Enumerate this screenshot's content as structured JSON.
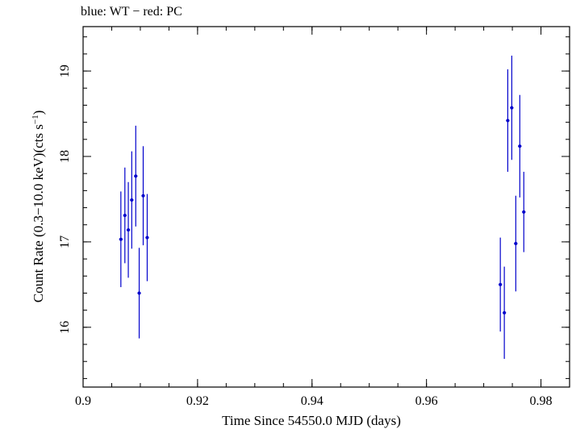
{
  "header": {
    "caption": "blue: WT − red: PC"
  },
  "chart_data": {
    "type": "scatter",
    "title": "blue: WT − red: PC",
    "xlabel": "Time Since 54550.0 MJD (days)",
    "ylabel_main": "Count Rate (0.3−10.0 keV)(cts s",
    "ylabel_exp": "−1",
    "ylabel_tail": ")",
    "xlim": [
      0.9,
      0.985
    ],
    "ylim": [
      15.3,
      19.52
    ],
    "xticks": [
      0.9,
      0.92,
      0.94,
      0.96,
      0.98
    ],
    "xtick_labels": [
      "0.9",
      "0.92",
      "0.94",
      "0.96",
      "0.98"
    ],
    "yticks": [
      16,
      17,
      18,
      19
    ],
    "ytick_labels": [
      "16",
      "17",
      "18",
      "19"
    ],
    "grid": false,
    "series": [
      {
        "name": "WT",
        "color": "#0000cc",
        "points": [
          {
            "x": 0.9066,
            "xerr": 0.0003,
            "y": 17.03,
            "yerr": 0.56
          },
          {
            "x": 0.9073,
            "xerr": 0.0003,
            "y": 17.31,
            "yerr": 0.56
          },
          {
            "x": 0.9079,
            "xerr": 0.0003,
            "y": 17.14,
            "yerr": 0.56
          },
          {
            "x": 0.9085,
            "xerr": 0.0003,
            "y": 17.49,
            "yerr": 0.57
          },
          {
            "x": 0.9092,
            "xerr": 0.0003,
            "y": 17.77,
            "yerr": 0.59
          },
          {
            "x": 0.9098,
            "xerr": 0.0003,
            "y": 16.4,
            "yerr": 0.53
          },
          {
            "x": 0.9105,
            "xerr": 0.0003,
            "y": 17.54,
            "yerr": 0.58
          },
          {
            "x": 0.9112,
            "xerr": 0.0003,
            "y": 17.05,
            "yerr": 0.51
          },
          {
            "x": 0.9729,
            "xerr": 0.0003,
            "y": 16.5,
            "yerr": 0.55
          },
          {
            "x": 0.9736,
            "xerr": 0.0003,
            "y": 16.17,
            "yerr": 0.54
          },
          {
            "x": 0.9742,
            "xerr": 0.0003,
            "y": 18.42,
            "yerr": 0.6
          },
          {
            "x": 0.9749,
            "xerr": 0.0003,
            "y": 18.57,
            "yerr": 0.61
          },
          {
            "x": 0.9756,
            "xerr": 0.0003,
            "y": 16.98,
            "yerr": 0.56
          },
          {
            "x": 0.9763,
            "xerr": 0.0003,
            "y": 18.12,
            "yerr": 0.6
          },
          {
            "x": 0.977,
            "xerr": 0.0003,
            "y": 17.35,
            "yerr": 0.47
          }
        ]
      }
    ]
  }
}
